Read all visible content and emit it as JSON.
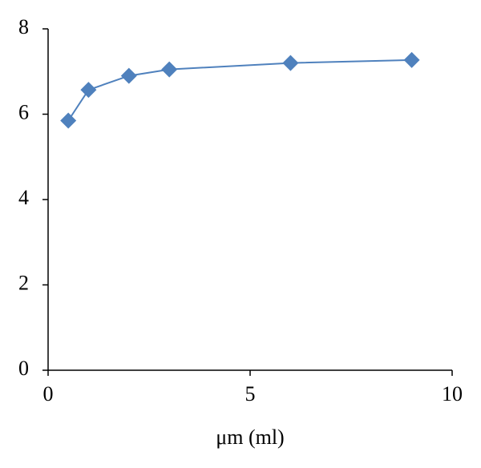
{
  "chart_data": {
    "type": "line",
    "x_label": "μm (ml)",
    "x": [
      0.5,
      1,
      2,
      3,
      6,
      9
    ],
    "series": [
      {
        "color": "#4f81bd",
        "values": [
          5.85,
          6.57,
          6.9,
          7.05,
          7.2,
          7.27
        ]
      }
    ],
    "xlim": [
      0,
      10
    ],
    "xticks": [
      0,
      5,
      10
    ],
    "ylim": [
      0,
      8
    ],
    "yticks": [
      0,
      2,
      4,
      6,
      8
    ],
    "grid": false
  }
}
